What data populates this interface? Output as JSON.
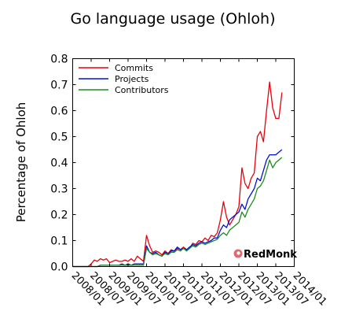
{
  "chart_data": {
    "type": "line",
    "title": "Go language usage (Ohloh)",
    "xlabel": "",
    "ylabel": "Percentage of Ohloh",
    "ylim": [
      0,
      0.8
    ],
    "yticks": [
      "0.0",
      "0.1",
      "0.2",
      "0.3",
      "0.4",
      "0.5",
      "0.6",
      "0.7",
      "0.8"
    ],
    "xticks": [
      "2008/01",
      "2008/07",
      "2009/01",
      "2009/07",
      "2010/01",
      "2010/07",
      "2011/01",
      "2011/07",
      "2012/01",
      "2012/07",
      "2013/01",
      "2013/07",
      "2014/01"
    ],
    "x_start": "2008/01",
    "x_interval": "month",
    "grid": false,
    "legend_position": "top-left",
    "watermark": "RedMonk",
    "series": [
      {
        "name": "Commits",
        "color": "#e8000b",
        "values": [
          0,
          0,
          0,
          0,
          0,
          0,
          0.01,
          0.025,
          0.02,
          0.03,
          0.025,
          0.03,
          0.015,
          0.02,
          0.025,
          0.02,
          0.02,
          0.025,
          0.02,
          0.03,
          0.02,
          0.04,
          0.03,
          0.02,
          0.12,
          0.08,
          0.055,
          0.06,
          0.055,
          0.045,
          0.06,
          0.05,
          0.065,
          0.06,
          0.07,
          0.065,
          0.075,
          0.065,
          0.07,
          0.09,
          0.085,
          0.1,
          0.095,
          0.11,
          0.1,
          0.12,
          0.115,
          0.13,
          0.18,
          0.25,
          0.19,
          0.16,
          0.18,
          0.2,
          0.23,
          0.38,
          0.32,
          0.3,
          0.34,
          0.36,
          0.5,
          0.52,
          0.48,
          0.6,
          0.71,
          0.61,
          0.57,
          0.57,
          0.67
        ]
      },
      {
        "name": "Projects",
        "color": "#0010d8",
        "values": [
          0,
          0,
          0,
          0,
          0,
          0,
          0,
          0,
          0,
          0.005,
          0.005,
          0.005,
          0.005,
          0.005,
          0.005,
          0.005,
          0.01,
          0.005,
          0.01,
          0.005,
          0.01,
          0.01,
          0.01,
          0.01,
          0.08,
          0.055,
          0.05,
          0.055,
          0.045,
          0.04,
          0.055,
          0.05,
          0.06,
          0.06,
          0.075,
          0.065,
          0.07,
          0.065,
          0.075,
          0.085,
          0.08,
          0.09,
          0.095,
          0.09,
          0.095,
          0.1,
          0.11,
          0.11,
          0.14,
          0.16,
          0.15,
          0.18,
          0.19,
          0.2,
          0.21,
          0.24,
          0.22,
          0.26,
          0.28,
          0.3,
          0.34,
          0.33,
          0.37,
          0.41,
          0.43,
          0.43,
          0.43,
          0.44,
          0.45
        ]
      },
      {
        "name": "Contributors",
        "color": "#1f8a1f",
        "values": [
          0,
          0,
          0,
          0,
          0,
          0,
          0,
          0,
          0,
          0.005,
          0.005,
          0.005,
          0.005,
          0.005,
          0.005,
          0.005,
          0.005,
          0.005,
          0.005,
          0.005,
          0.005,
          0.005,
          0.005,
          0.005,
          0.07,
          0.055,
          0.045,
          0.05,
          0.045,
          0.04,
          0.05,
          0.045,
          0.055,
          0.055,
          0.065,
          0.06,
          0.07,
          0.06,
          0.07,
          0.08,
          0.075,
          0.085,
          0.09,
          0.085,
          0.09,
          0.095,
          0.1,
          0.105,
          0.12,
          0.13,
          0.12,
          0.14,
          0.15,
          0.16,
          0.17,
          0.21,
          0.19,
          0.22,
          0.24,
          0.26,
          0.3,
          0.31,
          0.33,
          0.37,
          0.41,
          0.38,
          0.4,
          0.41,
          0.42
        ]
      }
    ]
  }
}
